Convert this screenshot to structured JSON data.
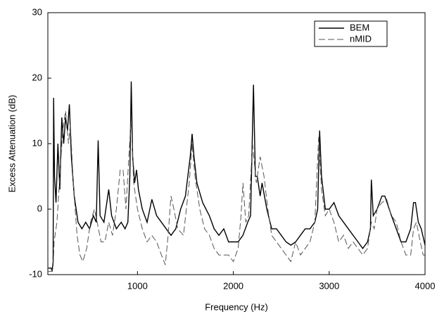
{
  "chart_data": {
    "type": "line",
    "xlabel": "Frequency (Hz)",
    "ylabel": "Excess Attenuation (dB)",
    "xlim": [
      65,
      4000
    ],
    "ylim": [
      -10,
      30
    ],
    "xticks": [
      1000,
      2000,
      3000,
      4000
    ],
    "yticks": [
      -10,
      0,
      10,
      20,
      30
    ],
    "legend": "upper right",
    "series": [
      {
        "name": "BEM",
        "color": "#000000",
        "style": "solid",
        "x": [
          70,
          100,
          110,
          120,
          125,
          135,
          150,
          170,
          190,
          210,
          230,
          250,
          270,
          290,
          310,
          340,
          380,
          420,
          460,
          500,
          540,
          570,
          590,
          610,
          650,
          700,
          730,
          780,
          830,
          870,
          900,
          920,
          935,
          950,
          970,
          990,
          1010,
          1050,
          1100,
          1150,
          1200,
          1250,
          1300,
          1350,
          1400,
          1450,
          1500,
          1550,
          1570,
          1590,
          1620,
          1680,
          1750,
          1800,
          1850,
          1900,
          1950,
          2000,
          2050,
          2100,
          2150,
          2180,
          2210,
          2230,
          2250,
          2280,
          2300,
          2350,
          2400,
          2450,
          2500,
          2550,
          2600,
          2650,
          2700,
          2750,
          2800,
          2850,
          2880,
          2900,
          2920,
          2960,
          3000,
          3050,
          3100,
          3200,
          3300,
          3350,
          3400,
          3430,
          3440,
          3460,
          3500,
          3550,
          3580,
          3650,
          3700,
          3750,
          3800,
          3850,
          3880,
          3900,
          3930,
          3960,
          4000
        ],
        "values": [
          -9,
          -9,
          -9.5,
          -8,
          17,
          5,
          1,
          10,
          3,
          14,
          10,
          14,
          12,
          16,
          8,
          2,
          -2,
          -3,
          -2,
          -3,
          -1,
          -2,
          10.5,
          -1,
          -2,
          3,
          -1,
          -3,
          -2,
          -3,
          -2,
          5,
          19.5,
          8,
          4,
          6,
          3,
          0,
          -2,
          1.5,
          -1,
          -2,
          -3,
          -4,
          -3,
          0,
          2,
          8,
          11.5,
          8,
          4,
          1,
          -1,
          -3,
          -4,
          -3,
          -5,
          -5,
          -5,
          -4,
          -2,
          -1,
          19,
          5,
          5,
          2,
          4,
          0,
          -3,
          -3,
          -4,
          -5,
          -5.5,
          -5,
          -4,
          -3,
          -3,
          -2,
          0,
          12,
          5,
          0,
          0,
          1,
          -1,
          -3,
          -5,
          -6,
          -5,
          -3,
          4.5,
          -1,
          0,
          2,
          2,
          -1,
          -3,
          -5,
          -5,
          -3,
          1,
          1,
          -2,
          -3,
          -5.5
        ]
      },
      {
        "name": "nMID",
        "color": "#555555",
        "style": "dashed",
        "x": [
          70,
          100,
          120,
          130,
          160,
          190,
          220,
          250,
          280,
          300,
          330,
          370,
          400,
          430,
          470,
          510,
          550,
          580,
          620,
          660,
          700,
          740,
          780,
          820,
          850,
          880,
          910,
          935,
          960,
          1000,
          1050,
          1100,
          1150,
          1200,
          1250,
          1290,
          1320,
          1350,
          1380,
          1420,
          1480,
          1540,
          1570,
          1600,
          1650,
          1700,
          1750,
          1800,
          1850,
          1900,
          1950,
          2000,
          2050,
          2080,
          2100,
          2130,
          2160,
          2200,
          2240,
          2280,
          2320,
          2360,
          2400,
          2450,
          2500,
          2550,
          2600,
          2650,
          2700,
          2750,
          2800,
          2850,
          2890,
          2920,
          2960,
          3000,
          3050,
          3100,
          3150,
          3200,
          3250,
          3300,
          3350,
          3400,
          3420,
          3440,
          3470,
          3500,
          3550,
          3600,
          3650,
          3700,
          3750,
          3800,
          3850,
          3880,
          3910,
          3950,
          3980,
          4000
        ],
        "values": [
          -9.5,
          -9.5,
          -9,
          -5,
          -2,
          5,
          12,
          15,
          10,
          13,
          4,
          -4,
          -7,
          -8,
          -6,
          -2,
          0,
          -2,
          -5,
          -5,
          -2,
          -4,
          0,
          6,
          6,
          0,
          8,
          14,
          4,
          0,
          -3,
          -5,
          -4,
          -5,
          -7,
          -8.5,
          -4,
          2,
          0,
          -3,
          -4,
          4,
          10,
          5,
          0,
          -3,
          -4,
          -6,
          -7,
          -7,
          -7,
          -8,
          -6,
          -1,
          4,
          -2,
          -1,
          10,
          4,
          8,
          5,
          0,
          -4,
          -5,
          -6,
          -7,
          -8,
          -5,
          -7,
          -6,
          -5,
          -2,
          11,
          3,
          -1,
          0,
          -2,
          -5,
          -4,
          -6,
          -5,
          -6,
          -7,
          -6,
          -4,
          -2,
          -3,
          0,
          1,
          1.5,
          -1,
          -2,
          -5,
          -7,
          -7,
          -3,
          -2,
          -5,
          -7,
          -7
        ]
      }
    ]
  }
}
